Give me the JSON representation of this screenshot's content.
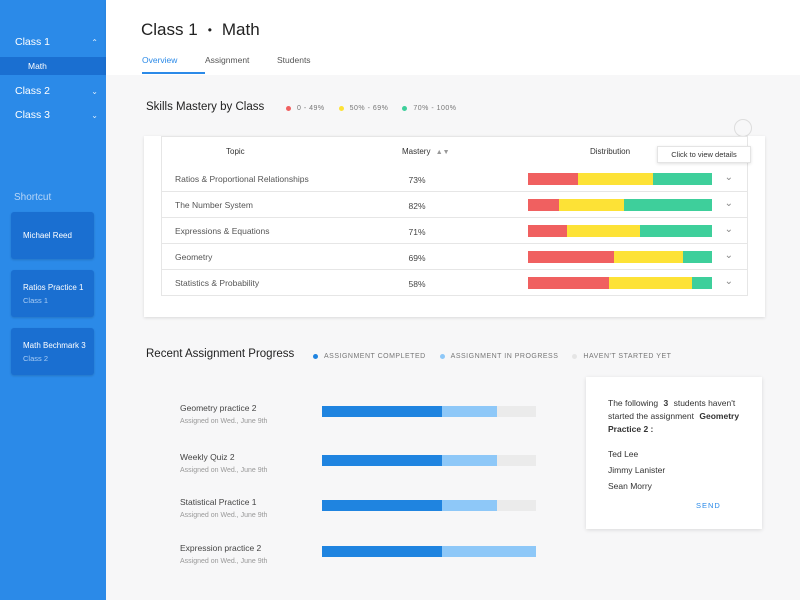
{
  "sidebar": {
    "items": [
      {
        "label": "Class 1",
        "chevron": "chevron-up-icon"
      },
      {
        "label": "Class 2",
        "chevron": "chevron-down-icon"
      },
      {
        "label": "Class 3",
        "chevron": "chevron-down-icon"
      }
    ],
    "sub_item": "Math",
    "shortcut_title": "Shortcut",
    "shortcuts": [
      {
        "title": "Michael  Reed",
        "subtitle": ""
      },
      {
        "title": "Ratios Practice 1",
        "subtitle": "Class 1"
      },
      {
        "title": "Math Bechmark 3",
        "subtitle": "Class 2"
      }
    ]
  },
  "header": {
    "class_name": "Class 1",
    "separator": "•",
    "subject": "Math",
    "tabs": [
      {
        "label": "Overview",
        "active": true
      },
      {
        "label": "Assignment",
        "active": false
      },
      {
        "label": "Students",
        "active": false
      }
    ]
  },
  "skills": {
    "title": "Skills Mastery by Class",
    "legend": [
      {
        "label": "0 - 49%",
        "color": "#f06060"
      },
      {
        "label": "50% - 69%",
        "color": "#fde236"
      },
      {
        "label": "70% - 100%",
        "color": "#3ecf9b"
      }
    ],
    "columns": {
      "topic": "Topic",
      "mastery": "Mastery",
      "distribution": "Distribution"
    },
    "tooltip": "Click to view details",
    "rows": [
      {
        "topic": "Ratios & Proportional Relationships",
        "mastery": "73%",
        "dist": [
          0.27,
          0.41,
          0.32
        ]
      },
      {
        "topic": "The Number System",
        "mastery": "82%",
        "dist": [
          0.17,
          0.35,
          0.48
        ]
      },
      {
        "topic": "Expressions & Equations",
        "mastery": "71%",
        "dist": [
          0.21,
          0.4,
          0.39
        ]
      },
      {
        "topic": "Geometry",
        "mastery": "69%",
        "dist": [
          0.47,
          0.37,
          0.16
        ]
      },
      {
        "topic": "Statistics & Probability",
        "mastery": "58%",
        "dist": [
          0.44,
          0.45,
          0.11
        ]
      }
    ]
  },
  "assignments": {
    "title": "Recent Assignment Progress",
    "legend": [
      {
        "label": "ASSIGNMENT COMPLETED",
        "color": "#1f84e0"
      },
      {
        "label": "ASSIGNMENT IN PROGRESS",
        "color": "#8ec8f8"
      },
      {
        "label": "HAVEN'T STARTED YET",
        "color": "#e5e5e5"
      }
    ],
    "items": [
      {
        "name": "Geometry practice 2",
        "date": "Assigned on Wed., June 9th",
        "completed": 0.56,
        "in_progress": 0.26
      },
      {
        "name": "Weekly Quiz 2",
        "date": "Assigned on Wed., June 9th",
        "completed": 0.56,
        "in_progress": 0.26
      },
      {
        "name": "Statistical Practice 1",
        "date": "Assigned on Wed., June 9th",
        "completed": 0.56,
        "in_progress": 0.26
      },
      {
        "name": "Expression practice 2",
        "date": "Assigned on Wed., June 9th",
        "completed": 0.56,
        "in_progress": 0.44
      }
    ]
  },
  "students_card": {
    "msg_pre": "The following",
    "count": "3",
    "msg_mid": "students haven't started the assignment",
    "assignment": "Geometry Practice 2 :",
    "names": [
      "Ted Lee",
      "Jimmy Lanister",
      "Sean Morry"
    ],
    "send": "SEND"
  }
}
